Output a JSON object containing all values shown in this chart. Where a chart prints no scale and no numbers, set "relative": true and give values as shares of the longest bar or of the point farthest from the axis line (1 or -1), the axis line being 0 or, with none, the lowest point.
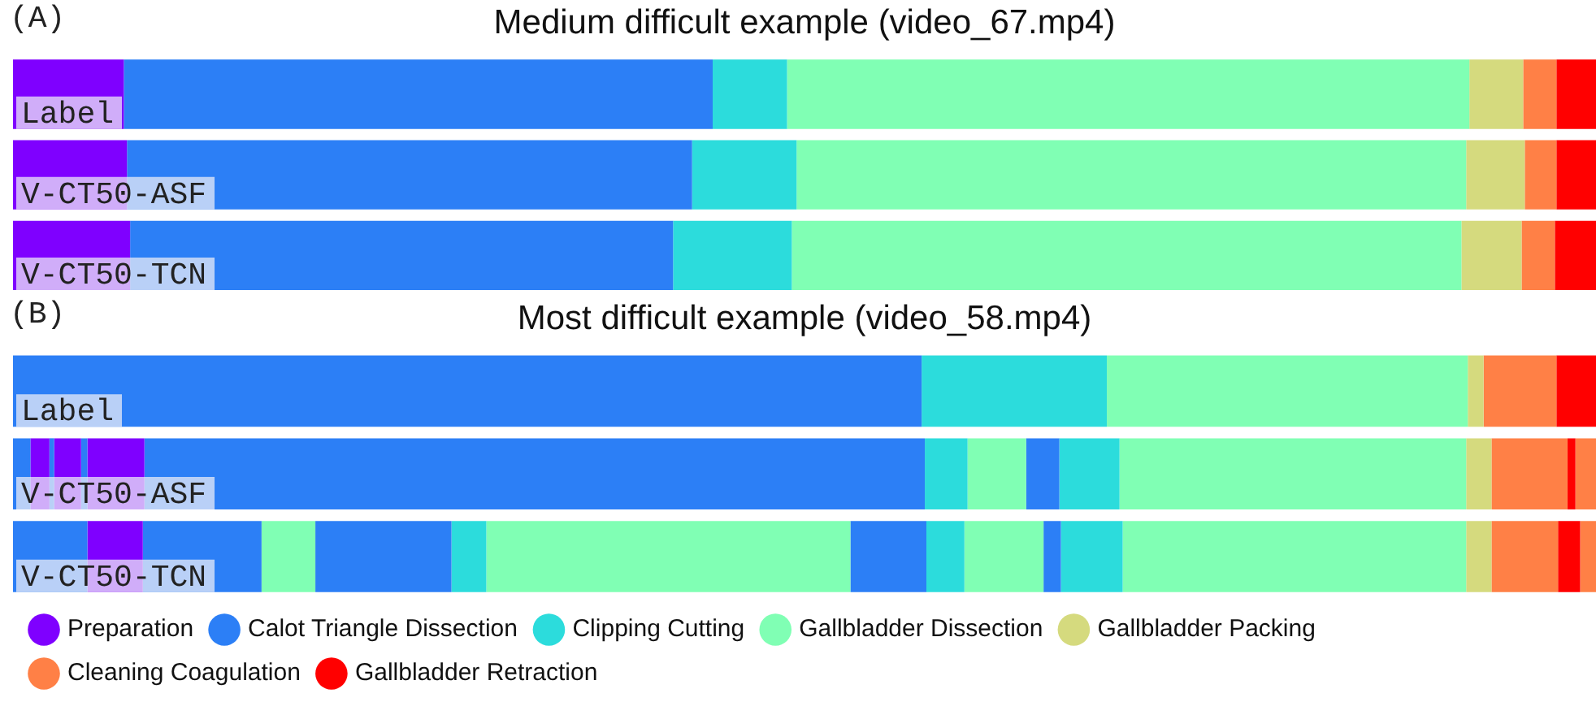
{
  "chart_data": [
    {
      "type": "bar",
      "orientation": "horizontal",
      "stacked": true,
      "relative": true,
      "tick_labels": false,
      "title": "Medium difficult example (video_67.mp4)",
      "annotations": [
        "(A)"
      ],
      "categories": [
        "Label",
        "V-CT50-ASF",
        "V-CT50-TCN"
      ],
      "series": [
        {
          "color": "#7f00ff",
          "values": [
            0.07,
            0.072,
            0.074
          ]
        },
        {
          "color": "#2c7ff6",
          "values": [
            0.372,
            0.357,
            0.343
          ]
        },
        {
          "color": "#2cdcdc",
          "values": [
            0.047,
            0.066,
            0.075
          ]
        },
        {
          "color": "#80ffb4",
          "values": [
            0.431,
            0.423,
            0.423
          ]
        },
        {
          "color": "#d5da7e",
          "values": [
            0.034,
            0.037,
            0.038
          ]
        },
        {
          "color": "#ff8046",
          "values": [
            0.021,
            0.02,
            0.021
          ]
        },
        {
          "color": "#ff0000",
          "values": [
            0.025,
            0.025,
            0.026
          ]
        }
      ]
    },
    {
      "type": "bar",
      "orientation": "horizontal",
      "stacked": true,
      "relative": true,
      "tick_labels": false,
      "legend": "bottom",
      "title": "Most difficult example (video_58.mp4)",
      "annotations": [
        "(B)"
      ],
      "categories": [
        "Label",
        "V-CT50-ASF",
        "V-CT50-TCN"
      ],
      "series": [
        {
          "color": "#2c7ff6",
          "values": [
            0.574,
            0.011,
            0.047
          ]
        },
        {
          "name": "Preparation",
          "color": "#7f00ff",
          "values": [
            0,
            0.012,
            0.035
          ]
        },
        {
          "name": "Calot Triangle Dissection",
          "color": "#2c7ff6",
          "values": [
            0,
            0.003,
            0.075
          ]
        },
        {
          "color": "#7f00ff",
          "values": [
            0,
            0.017,
            0
          ]
        },
        {
          "color": "#2c7ff6",
          "values": [
            0,
            0.004,
            0
          ]
        },
        {
          "color": "#7f00ff",
          "values": [
            0,
            0.036,
            0
          ]
        },
        {
          "color": "#2c7ff6",
          "values": [
            0,
            0.493,
            0
          ]
        },
        {
          "color": "#80ffb4",
          "values": [
            0,
            0,
            0.034
          ]
        },
        {
          "color": "#2c7ff6",
          "values": [
            0,
            0,
            0.086
          ]
        },
        {
          "name": "Clipping Cutting",
          "color": "#2cdcdc",
          "values": [
            0.117,
            0.027,
            0.022
          ]
        },
        {
          "name": "Gallbladder Dissection",
          "color": "#80ffb4",
          "values": [
            0.228,
            0.037,
            0.23
          ]
        },
        {
          "color": "#2c7ff6",
          "values": [
            0,
            0.021,
            0.048
          ]
        },
        {
          "color": "#2cdcdc",
          "values": [
            0,
            0.038,
            0.024
          ]
        },
        {
          "color": "#80ffb4",
          "values": [
            0,
            0.219,
            0.05
          ]
        },
        {
          "color": "#2c7ff6",
          "values": [
            0,
            0,
            0.011
          ]
        },
        {
          "color": "#2cdcdc",
          "values": [
            0,
            0,
            0.039
          ]
        },
        {
          "color": "#80ffb4",
          "values": [
            0,
            0,
            0.217
          ]
        },
        {
          "name": "Gallbladder Packing",
          "color": "#d5da7e",
          "values": [
            0.01,
            0.016,
            0.016
          ]
        },
        {
          "name": "Cleaning Coagulation",
          "color": "#ff8046",
          "values": [
            0.046,
            0.048,
            0.042
          ]
        },
        {
          "name": "Gallbladder Retraction",
          "color": "#ff0000",
          "values": [
            0.025,
            0.005,
            0.014
          ]
        },
        {
          "color": "#ff8046",
          "values": [
            0,
            0.013,
            0.01
          ]
        }
      ]
    }
  ]
}
